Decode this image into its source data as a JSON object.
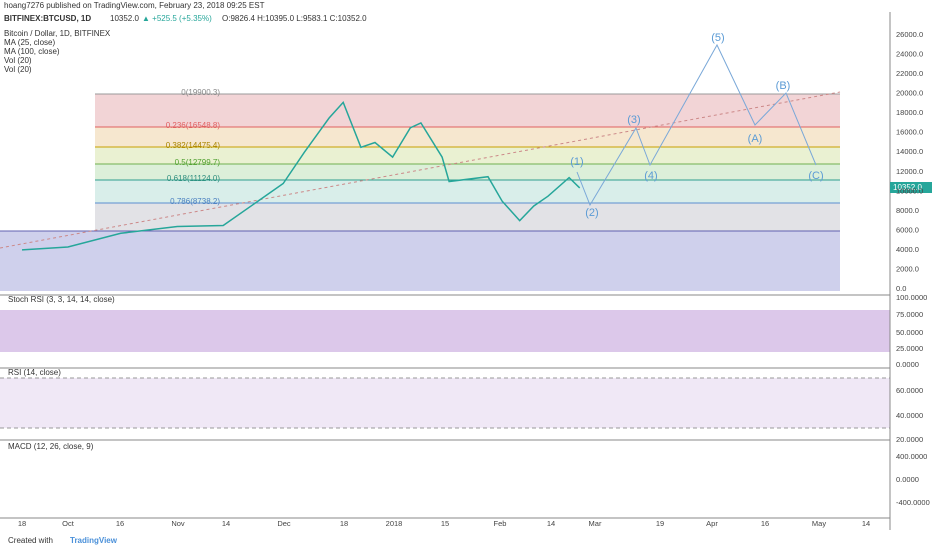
{
  "header": {
    "publisher": "hoang7276 published on TradingView.com, February 23, 2018 09:25 EST",
    "symbol": "BITFINEX:BTCUSD, 1D",
    "last": "10352.0",
    "change": "▲ +525.5 (+5.35%)",
    "ohlc": "O:9826.4 H:10395.0 L:9583.1 C:10352.0"
  },
  "legend": [
    "Bitcoin / Dollar, 1D, BITFINEX",
    "MA (25, close)",
    "MA (100, close)",
    "Vol (20)",
    "Vol (20)"
  ],
  "fib_levels": [
    "0(19900.3)",
    "0.236(16548.8)",
    "0.382(14475.4)",
    "0.5(12799.7)",
    "0.618(11124.0)",
    "0.786(8738.2)"
  ],
  "waves": [
    "(1)",
    "(2)",
    "(3)",
    "(4)",
    "(5)",
    "(A)",
    "(B)",
    "(C)"
  ],
  "price_axis": [
    "26000.0",
    "24000.0",
    "22000.0",
    "20000.0",
    "18000.0",
    "16000.0",
    "14000.0",
    "12000.0",
    "10000.0",
    "8000.0",
    "6000.0",
    "4000.0",
    "2000.0",
    "0.0"
  ],
  "price_label": "10352.0",
  "price_series": {
    "x": [
      "2017-09-18",
      "2017-10-01",
      "2017-10-16",
      "2017-11-01",
      "2017-11-14",
      "2017-12-01",
      "2017-12-07",
      "2017-12-14",
      "2017-12-18",
      "2017-12-23",
      "2017-12-27",
      "2018-01-01",
      "2018-01-06",
      "2018-01-09",
      "2018-01-15",
      "2018-01-17",
      "2018-01-28",
      "2018-02-01",
      "2018-02-06",
      "2018-02-10",
      "2018-02-14",
      "2018-02-20",
      "2018-02-23"
    ],
    "values": [
      4000,
      4300,
      5700,
      6400,
      6500,
      10800,
      14000,
      17500,
      19100,
      14500,
      15000,
      13500,
      16500,
      17000,
      13500,
      11000,
      11500,
      9000,
      7000,
      8500,
      9500,
      11400,
      10352
    ]
  },
  "panels": [
    {
      "title": "Stoch RSI (3, 3, 14, 14, close)",
      "ticks": [
        "100.0000",
        "75.0000",
        "50.0000",
        "25.0000",
        "0.0000"
      ]
    },
    {
      "title": "RSI (14, close)",
      "ticks": [
        "60.0000",
        "40.0000",
        "20.0000"
      ]
    },
    {
      "title": "MACD (12, 26, close, 9)",
      "ticks": [
        "400.0000",
        "0.0000",
        "-400.0000"
      ]
    }
  ],
  "time_axis": [
    "18",
    "Oct",
    "16",
    "Nov",
    "14",
    "Dec",
    "18",
    "2018",
    "15",
    "Feb",
    "14",
    "Mar",
    "19",
    "Apr",
    "16",
    "May",
    "14"
  ],
  "footer": {
    "created": "Created with",
    "brand": "TradingView"
  }
}
